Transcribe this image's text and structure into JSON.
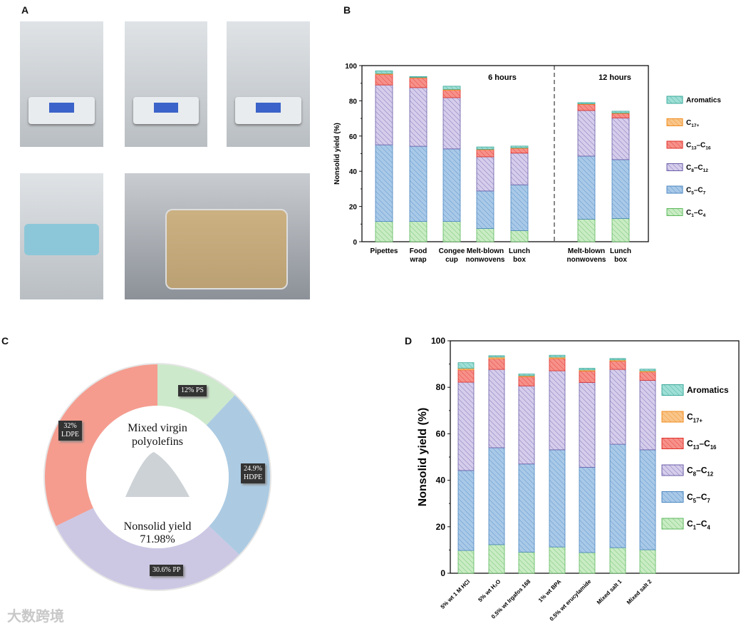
{
  "panels": {
    "a": "A",
    "b": "B",
    "c": "C",
    "d": "D"
  },
  "photos": [
    "pipettes-photo",
    "food-wrap-photo",
    "cup-photo",
    "mask-photo",
    "lunch-box-photo"
  ],
  "watermark": "大数跨境",
  "colors": {
    "C1-C4": "#c9ecc4",
    "C5-C7": "#a9c9e8",
    "C8-C12": "#d5cdeb",
    "C13-C16": "#f6918a",
    "C17+": "#f9c58a",
    "Aromatics": "#9fdfd6"
  },
  "chart_data": [
    {
      "type": "bar",
      "stacked": true,
      "ylabel": "Nonsolid yield (%)",
      "ylim": [
        0,
        100
      ],
      "yticks": [
        "0",
        "20",
        "40",
        "60",
        "80",
        "100"
      ],
      "group_labels": [
        "6 hours",
        "12 hours"
      ],
      "categories": [
        [
          "Pipettes"
        ],
        [
          "Food",
          "wrap"
        ],
        [
          "Congee",
          "cup"
        ],
        [
          "Melt-blown",
          "nonwovens"
        ],
        [
          "Lunch",
          "box"
        ],
        [
          "Melt-blown",
          "nonwovens"
        ],
        [
          "Lunch",
          "box"
        ]
      ],
      "group_of_category": [
        0,
        0,
        0,
        0,
        0,
        1,
        1
      ],
      "series": [
        {
          "name": "C1–C4",
          "key": "C1-C4",
          "values": [
            11.5,
            11.5,
            11.5,
            7.5,
            6.3,
            12.8,
            13.2
          ]
        },
        {
          "name": "C5–C7",
          "key": "C5-C7",
          "values": [
            43.5,
            42.7,
            41.2,
            21.3,
            26.0,
            35.8,
            33.4
          ]
        },
        {
          "name": "C8–C12",
          "key": "C8-C12",
          "values": [
            34.0,
            33.3,
            29.1,
            19.4,
            18.0,
            25.9,
            23.7
          ]
        },
        {
          "name": "C13–C16",
          "key": "C13-C16",
          "values": [
            6.0,
            5.5,
            4.2,
            4.0,
            2.7,
            3.5,
            2.5
          ]
        },
        {
          "name": "C17+",
          "key": "C17+",
          "values": [
            0.5,
            0.3,
            0.5,
            0.3,
            0.3,
            0.3,
            0.3
          ]
        },
        {
          "name": "Aromatics",
          "key": "Aromatics",
          "values": [
            1.5,
            0.5,
            1.8,
            1.3,
            1.0,
            0.7,
            1.0
          ]
        }
      ],
      "legend": [
        {
          "main": "Aromatics"
        },
        {
          "main": "C",
          "sub": "17+"
        },
        {
          "main": "C",
          "sub": "13",
          "mid": "–C",
          "sub2": "16"
        },
        {
          "main": "C",
          "sub": "8",
          "mid": "–C",
          "sub2": "12"
        },
        {
          "main": "C",
          "sub": "5",
          "mid": "–C",
          "sub2": "7"
        },
        {
          "main": "C",
          "sub": "1",
          "mid": "–C",
          "sub2": "4"
        }
      ],
      "legend_placement": "right"
    },
    {
      "type": "pie",
      "donut": true,
      "title": "Mixed virgin polyolefins",
      "subtitle": "Nonsolid yield",
      "subtitle_value": "71.98%",
      "slices": [
        {
          "label": "12% PS",
          "value": 12,
          "color": "#cde9cb"
        },
        {
          "label": "24.9% HDPE",
          "value": 24.9,
          "color": "#accbe3"
        },
        {
          "label": "30.6% PP",
          "value": 30.6,
          "color": "#ccc8e4"
        },
        {
          "label": "32% LDPE",
          "value": 32,
          "color": "#f59c8f"
        }
      ]
    },
    {
      "type": "bar",
      "stacked": true,
      "ylabel": "Nonsolid yield (%)",
      "ylim": [
        0,
        100
      ],
      "yticks": [
        "0",
        "20",
        "40",
        "60",
        "80",
        "100"
      ],
      "categories": [
        "5% wt 1 M HCl",
        "5% wt H₂O",
        "0.5% wt Irgafos 168",
        "1% wt BPA",
        "0.5% wt erucylamide",
        "Mixed salt 1",
        "Mixed salt 2"
      ],
      "series": [
        {
          "name": "C1–C4",
          "key": "C1-C4",
          "values": [
            9.8,
            12.3,
            9.1,
            11.3,
            8.9,
            11.0,
            10.1
          ]
        },
        {
          "name": "C5–C7",
          "key": "C5-C7",
          "values": [
            34.4,
            41.7,
            37.9,
            41.8,
            36.7,
            44.5,
            43.0
          ]
        },
        {
          "name": "C8–C12",
          "key": "C8-C12",
          "values": [
            38.0,
            33.7,
            33.6,
            34.0,
            36.5,
            32.2,
            29.9
          ]
        },
        {
          "name": "C13–C16",
          "key": "C13-C16",
          "values": [
            5.3,
            4.6,
            4.0,
            5.3,
            4.9,
            3.6,
            3.6
          ]
        },
        {
          "name": "C17+",
          "key": "C17+",
          "values": [
            0.7,
            0.7,
            0.4,
            0.6,
            0.5,
            0.5,
            0.5
          ]
        },
        {
          "name": "Aromatics",
          "key": "Aromatics",
          "values": [
            2.4,
            0.6,
            0.7,
            0.8,
            0.7,
            0.6,
            0.7
          ]
        }
      ],
      "legend": [
        {
          "main": "Aromatics"
        },
        {
          "main": "C",
          "sub": "17+"
        },
        {
          "main": "C",
          "sub": "13",
          "mid": "–C",
          "sub2": "16"
        },
        {
          "main": "C",
          "sub": "8",
          "mid": "–C",
          "sub2": "12"
        },
        {
          "main": "C",
          "sub": "5",
          "mid": "–C",
          "sub2": "7"
        },
        {
          "main": "C",
          "sub": "1",
          "mid": "–C",
          "sub2": "4"
        }
      ],
      "legend_placement": "right"
    }
  ]
}
